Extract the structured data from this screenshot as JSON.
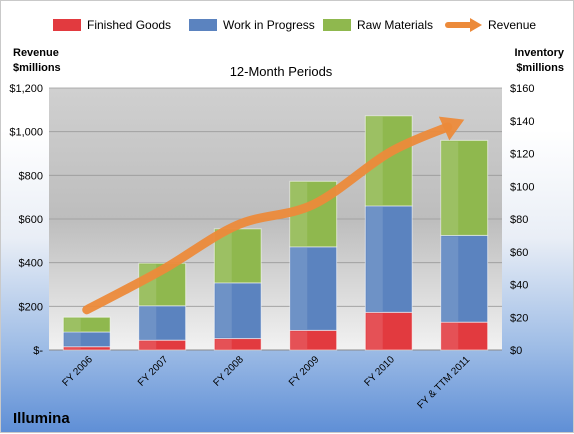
{
  "company": "Illumina",
  "chart_data": {
    "type": "bar",
    "stacked": true,
    "title": "12-Month Periods",
    "y_left_label": [
      "Revenue",
      "$millions"
    ],
    "y_right_label": [
      "Inventory",
      "$millions"
    ],
    "categories": [
      "FY 2006",
      "FY 2007",
      "FY 2008",
      "FY 2009",
      "FY 2010",
      "FY & TTM 2011"
    ],
    "ylim_left": [
      0,
      1200
    ],
    "ylim_right": [
      0,
      160
    ],
    "left_ticks": [
      "$-",
      "$200",
      "$400",
      "$600",
      "$800",
      "$1,000",
      "$1,200"
    ],
    "right_ticks": [
      "$0",
      "$20",
      "$40",
      "$60",
      "$80",
      "$100",
      "$120",
      "$140",
      "$160"
    ],
    "legend_position": "top",
    "series": [
      {
        "name": "Finished Goods",
        "axis": "right",
        "color": "#e23a3f",
        "values": [
          2,
          6,
          7,
          12,
          23,
          17
        ]
      },
      {
        "name": "Work in Progress",
        "axis": "right",
        "color": "#5b83bf",
        "values": [
          9,
          21,
          34,
          51,
          65,
          53
        ]
      },
      {
        "name": "Raw Materials",
        "axis": "right",
        "color": "#8fb84e",
        "values": [
          9,
          26,
          33,
          40,
          55,
          58
        ]
      },
      {
        "name": "Revenue",
        "axis": "left",
        "type": "line",
        "color": "#ec8a3a",
        "values": [
          184,
          367,
          573,
          666,
          903,
          1055
        ]
      }
    ]
  }
}
